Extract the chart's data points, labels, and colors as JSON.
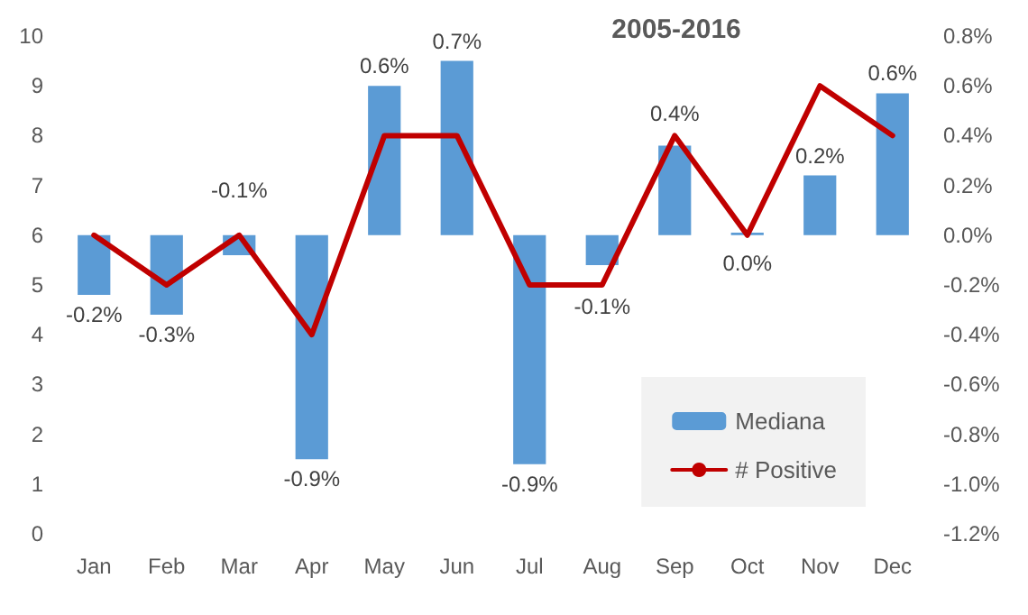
{
  "chart_data": {
    "type": "bar",
    "title": "2005-2016",
    "categories": [
      "Jan",
      "Feb",
      "Mar",
      "Apr",
      "May",
      "Jun",
      "Jul",
      "Aug",
      "Sep",
      "Oct",
      "Nov",
      "Dec"
    ],
    "series": [
      {
        "name": "Mediana",
        "axis": "y2",
        "color": "#5b9bd5",
        "values": [
          -0.24,
          -0.32,
          -0.08,
          -0.9,
          0.6,
          0.7,
          -0.92,
          -0.12,
          0.36,
          0.01,
          0.24,
          0.57
        ],
        "value_labels": [
          "-0.2%",
          "-0.3%",
          "-0.1%",
          "-0.9%",
          "0.6%",
          "0.7%",
          "-0.9%",
          "-0.1%",
          "0.4%",
          "0.0%",
          "0.2%",
          "0.6%"
        ]
      },
      {
        "name": "# Positive",
        "type": "line",
        "color": "#c00000",
        "values": [
          6,
          5,
          6,
          4,
          8,
          8,
          5,
          5,
          8,
          6,
          9,
          8
        ]
      }
    ],
    "ylim": [
      0,
      10
    ],
    "yticks": [
      0,
      1,
      2,
      3,
      4,
      5,
      6,
      7,
      8,
      9,
      10
    ],
    "y2lim": [
      -1.2,
      0.8
    ],
    "y2ticks": [
      {
        "value": -1.2,
        "label": "-1.2%"
      },
      {
        "value": -1.0,
        "label": "-1.0%"
      },
      {
        "value": -0.8,
        "label": "-0.8%"
      },
      {
        "value": -0.6,
        "label": "-0.6%"
      },
      {
        "value": -0.4,
        "label": "-0.4%"
      },
      {
        "value": -0.2,
        "label": "-0.2%"
      },
      {
        "value": 0,
        "label": "0.0%"
      },
      {
        "value": 0.2,
        "label": "0.2%"
      },
      {
        "value": 0.4,
        "label": "0.4%"
      },
      {
        "value": 0.6,
        "label": "0.6%"
      },
      {
        "value": 0.8,
        "label": "0.8%"
      }
    ],
    "grid": false,
    "legend": "bottom right",
    "marker": "none",
    "line_style": "solid"
  }
}
